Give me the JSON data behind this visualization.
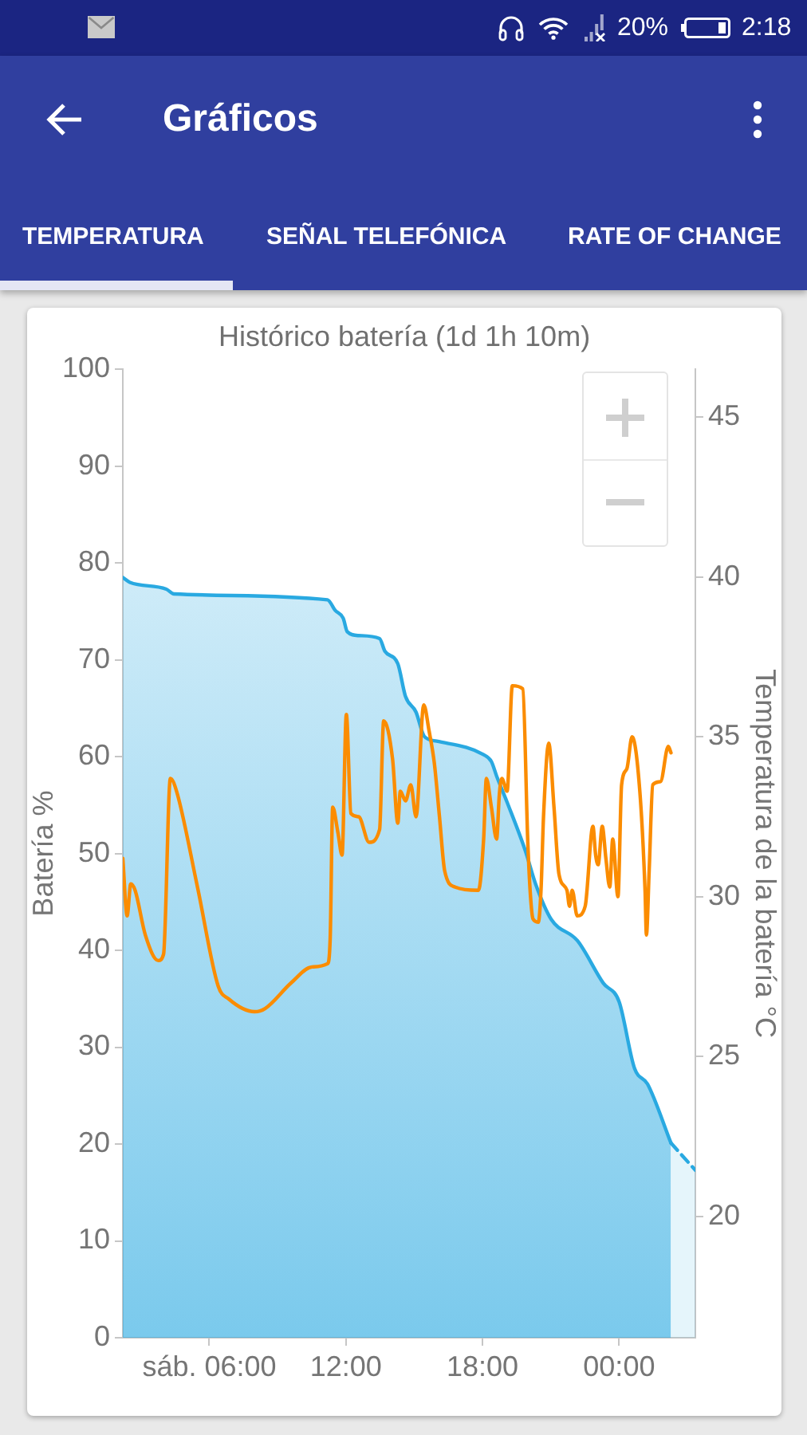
{
  "chart_data": {
    "type": "line",
    "title": "Histórico batería (1d 1h 10m)",
    "ylabel": "Batería %",
    "y2label": "Temperatura de la batería °C",
    "annotations": [
      "Gráficos",
      "TEMPERATURA",
      "SEÑAL TELEFÓNICA",
      "RATE OF CHANGE",
      "20%",
      "2:18"
    ],
    "xlim": [
      2.2,
      27.35
    ],
    "xticks": [
      {
        "value": 6,
        "label": "sáb. 06:00"
      },
      {
        "value": 12,
        "label": "12:00"
      },
      {
        "value": 18,
        "label": "18:00"
      },
      {
        "value": 24,
        "label": "00:00"
      }
    ],
    "ylim": [
      0,
      100
    ],
    "yticks": [
      0,
      10,
      20,
      30,
      40,
      50,
      60,
      70,
      80,
      90,
      100
    ],
    "y2lim": [
      16.2,
      46.5
    ],
    "y2ticks": [
      20,
      25,
      30,
      35,
      40,
      45
    ],
    "series": [
      {
        "type": "area",
        "color": "#29a9e1",
        "x": [
          2.2,
          2.51,
          4.11,
          4.45,
          11.19,
          11.53,
          11.88,
          12.06,
          12.56,
          13.48,
          13.71,
          14.28,
          14.62,
          15.08,
          15.44,
          15.99,
          18.05,
          18.39,
          18.62,
          19.08,
          19.88,
          20.34,
          21.02,
          22.17,
          23.31,
          24.0,
          24.68,
          25.25,
          26.28
        ],
        "values": [
          78.5,
          78.0,
          77.3,
          76.8,
          76.2,
          75.1,
          74.3,
          72.9,
          72.5,
          72.2,
          70.9,
          69.6,
          66.2,
          64.6,
          62.1,
          61.6,
          60.2,
          59.5,
          58.0,
          55.3,
          50.3,
          46.8,
          43.2,
          41.0,
          36.6,
          34.7,
          27.8,
          26.2,
          20.1
        ]
      },
      {
        "type": "area",
        "color": "#29a9e1",
        "line_style": "dashed",
        "x": [
          26.28,
          27.35
        ],
        "values": [
          20.1,
          17.3
        ]
      },
      {
        "color": "#fb8c00",
        "axis": "y2",
        "x": [
          2.2,
          2.39,
          2.55,
          2.74,
          3.19,
          3.76,
          3.99,
          4.29,
          4.56,
          5.48,
          6.39,
          6.85,
          7.99,
          8.45,
          9.59,
          10.51,
          11.19,
          11.31,
          11.42,
          11.65,
          11.83,
          12.02,
          12.22,
          12.56,
          13.02,
          13.48,
          13.66,
          14.05,
          14.28,
          14.39,
          14.62,
          14.85,
          15.08,
          15.42,
          15.65,
          15.88,
          16.11,
          16.34,
          16.8,
          17.82,
          18.05,
          18.17,
          18.39,
          18.62,
          18.74,
          18.85,
          19.08,
          19.31,
          19.77,
          19.99,
          20.11,
          20.22,
          20.45,
          20.57,
          20.68,
          20.91,
          21.14,
          21.36,
          21.71,
          21.82,
          21.94,
          22.16,
          22.51,
          22.85,
          22.97,
          23.08,
          23.26,
          23.42,
          23.59,
          23.72,
          23.95,
          24.11,
          24.34,
          24.57,
          24.91,
          25.14,
          25.2,
          25.32,
          25.48,
          25.82,
          26.16,
          26.28
        ],
        "values": [
          31.2,
          29.4,
          30.4,
          30.2,
          28.8,
          28.0,
          28.2,
          33.7,
          33.3,
          30.3,
          27.2,
          26.8,
          26.4,
          26.5,
          27.3,
          27.8,
          27.9,
          28.7,
          32.8,
          32.0,
          31.3,
          35.7,
          32.6,
          32.5,
          31.7,
          32.1,
          35.5,
          34.3,
          32.3,
          33.3,
          33.0,
          33.5,
          32.5,
          36.0,
          35.2,
          34.2,
          32.5,
          30.8,
          30.3,
          30.2,
          31.8,
          33.7,
          32.8,
          31.8,
          33.2,
          33.7,
          33.3,
          36.6,
          36.5,
          31.7,
          30.0,
          29.3,
          29.2,
          30.2,
          32.5,
          34.8,
          32.8,
          30.7,
          30.2,
          29.7,
          30.2,
          29.4,
          29.7,
          32.2,
          31.3,
          31.0,
          32.2,
          31.2,
          30.3,
          31.8,
          30.0,
          33.5,
          34.0,
          35.0,
          33.3,
          30.2,
          28.8,
          30.8,
          33.5,
          33.6,
          34.7,
          34.5
        ]
      }
    ]
  }
}
